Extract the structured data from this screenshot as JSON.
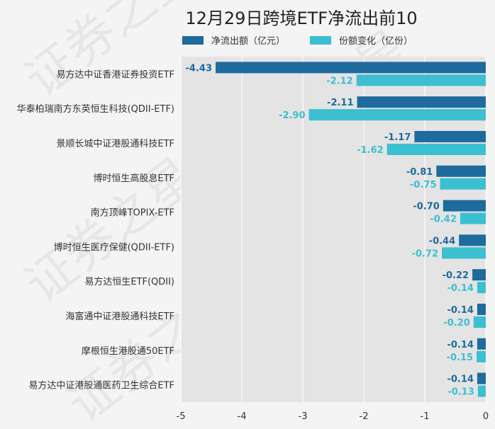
{
  "chart_data": {
    "type": "bar",
    "orientation": "horizontal",
    "title": "12月29日跨境ETF净流出前10",
    "categories": [
      "易方达中证香港证券投资ETF",
      "华泰柏瑞南方东英恒生科技(QDII-ETF)",
      "景顺长城中证港股通科技ETF",
      "博时恒生高股息ETF",
      "南方顶峰TOPIX-ETF",
      "博时恒生医疗保健(QDII-ETF)",
      "易方达恒生ETF(QDII)",
      "海富通中证港股通科技ETF",
      "摩根恒生港股通50ETF",
      "易方达中证港股通医药卫生综合ETF"
    ],
    "series": [
      {
        "name": "净流出额（亿元）",
        "color": "#1e6b9e",
        "values": [
          -4.43,
          -2.11,
          -1.17,
          -0.81,
          -0.7,
          -0.44,
          -0.22,
          -0.14,
          -0.14,
          -0.14
        ],
        "labels": [
          "-4.43",
          "-2.11",
          "-1.17",
          "-0.81",
          "-0.70",
          "-0.44",
          "-0.22",
          "-0.14",
          "-0.14",
          "-0.14"
        ]
      },
      {
        "name": "份额变化（亿份）",
        "color": "#3bbfd1",
        "values": [
          -2.12,
          -2.9,
          -1.62,
          -0.75,
          -0.42,
          -0.72,
          -0.14,
          -0.2,
          -0.15,
          -0.13
        ],
        "labels": [
          "-2.12",
          "-2.90",
          "-1.62",
          "-0.75",
          "-0.42",
          "-0.72",
          "-0.14",
          "-0.20",
          "-0.15",
          "-0.13"
        ]
      }
    ],
    "xlim": [
      -5,
      0
    ],
    "xticks": [
      "-5",
      "-4",
      "-3",
      "-2",
      "-1",
      "0"
    ],
    "grid": true,
    "legend_position": "top",
    "watermark": "证券之星"
  }
}
